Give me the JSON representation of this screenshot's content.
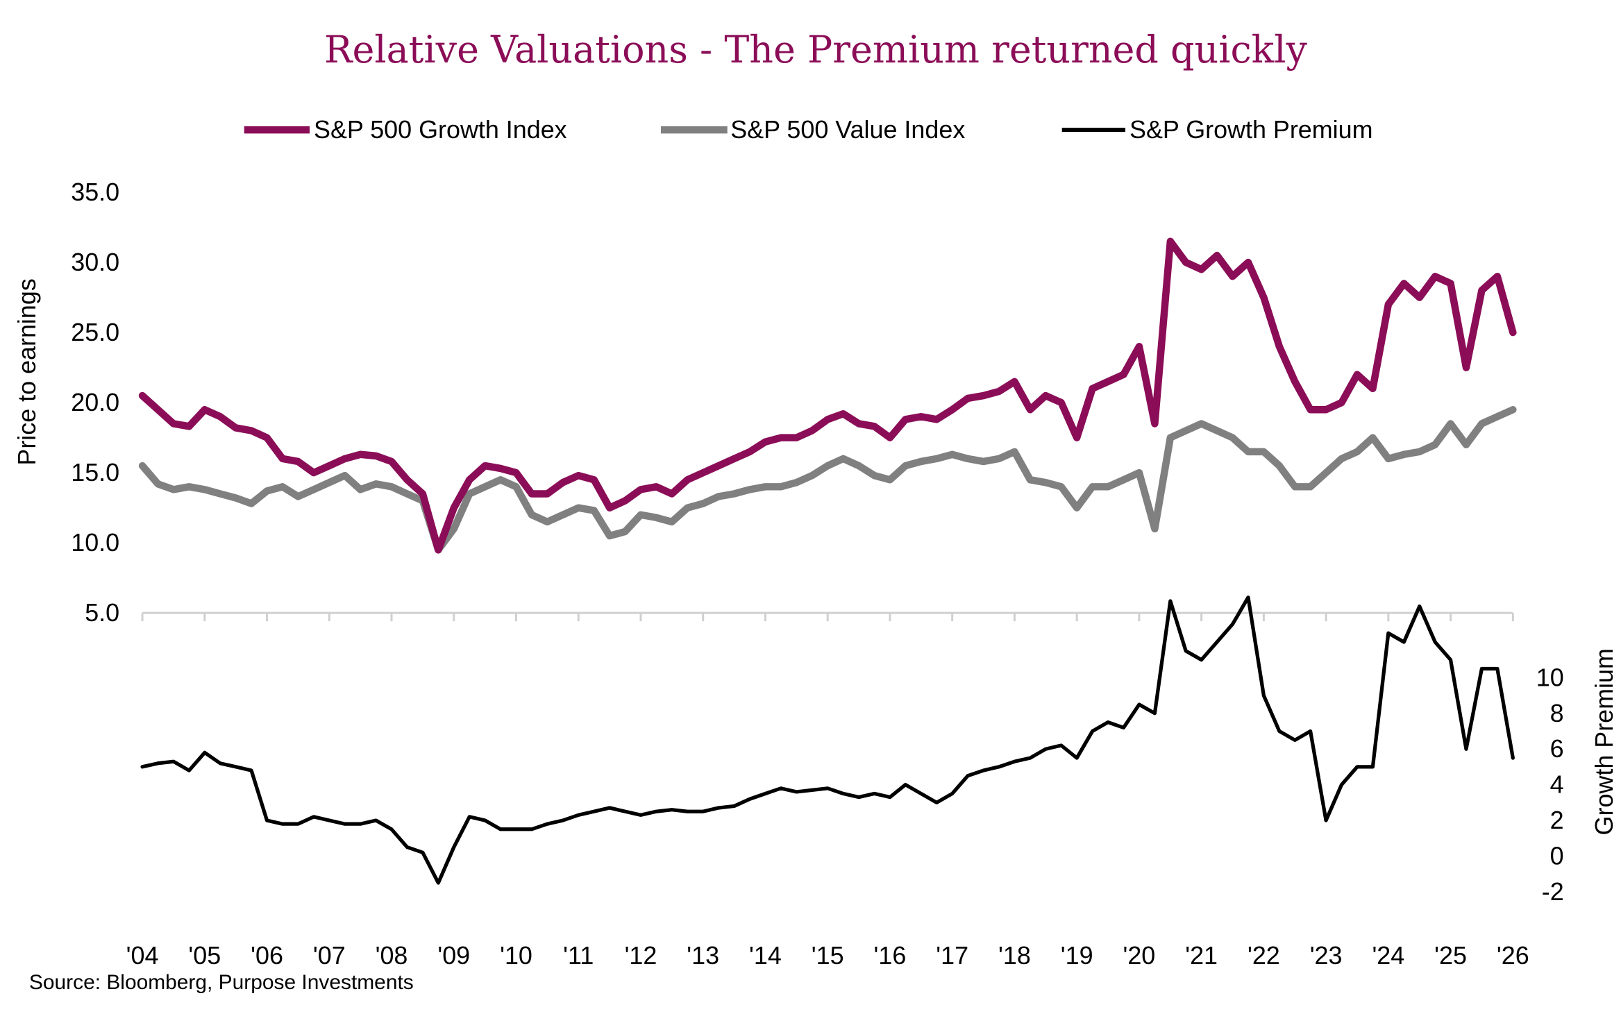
{
  "chart_data": {
    "type": "line",
    "title": "Relative Valuations - The Premium returned quickly",
    "source": "Source: Bloomberg, Purpose Investments",
    "ylabel": "Price to earnings",
    "y2label": "Growth Premium",
    "ylim": [
      5,
      35
    ],
    "yticks": [
      "35.0",
      "30.0",
      "25.0",
      "20.0",
      "15.0",
      "10.0",
      "5.0"
    ],
    "y2ticks": [
      "10",
      "8",
      "6",
      "4",
      "2",
      "0",
      "-2"
    ],
    "xticks": [
      "'04",
      "'05",
      "'06",
      "'07",
      "'08",
      "'09",
      "'10",
      "'11",
      "'12",
      "'13",
      "'14",
      "'15",
      "'16",
      "'17",
      "'18",
      "'19",
      "'20",
      "'21",
      "'22",
      "'23",
      "'24",
      "'25",
      "'26"
    ],
    "x_range": [
      2004,
      2026
    ],
    "grid": false,
    "legend_placement": "top",
    "colors": {
      "title": "#8B0D57",
      "growth": "#8B0D57",
      "value": "#808080",
      "premium": "#000000"
    },
    "x": [
      2004.0,
      2004.25,
      2004.5,
      2004.75,
      2005.0,
      2005.25,
      2005.5,
      2005.75,
      2006.0,
      2006.25,
      2006.5,
      2006.75,
      2007.0,
      2007.25,
      2007.5,
      2007.75,
      2008.0,
      2008.25,
      2008.5,
      2008.75,
      2009.0,
      2009.25,
      2009.5,
      2009.75,
      2010.0,
      2010.25,
      2010.5,
      2010.75,
      2011.0,
      2011.25,
      2011.5,
      2011.75,
      2012.0,
      2012.25,
      2012.5,
      2012.75,
      2013.0,
      2013.25,
      2013.5,
      2013.75,
      2014.0,
      2014.25,
      2014.5,
      2014.75,
      2015.0,
      2015.25,
      2015.5,
      2015.75,
      2016.0,
      2016.25,
      2016.5,
      2016.75,
      2017.0,
      2017.25,
      2017.5,
      2017.75,
      2018.0,
      2018.25,
      2018.5,
      2018.75,
      2019.0,
      2019.25,
      2019.5,
      2019.75,
      2020.0,
      2020.25,
      2020.5,
      2020.75,
      2021.0,
      2021.25,
      2021.5,
      2021.75,
      2022.0,
      2022.25,
      2022.5,
      2022.75,
      2023.0,
      2023.25,
      2023.5,
      2023.75,
      2024.0,
      2024.25,
      2024.5,
      2024.75,
      2025.0,
      2025.25,
      2025.5,
      2025.75,
      2026.0
    ],
    "series": [
      {
        "name": "S&P 500 Growth Index",
        "axis": "left",
        "values": [
          20.5,
          19.5,
          18.5,
          18.3,
          19.5,
          19.0,
          18.2,
          18.0,
          17.5,
          16.0,
          15.8,
          15.0,
          15.5,
          16.0,
          16.3,
          16.2,
          15.8,
          14.5,
          13.5,
          9.5,
          12.5,
          14.5,
          15.5,
          15.3,
          15.0,
          13.5,
          13.5,
          14.3,
          14.8,
          14.5,
          12.5,
          13.0,
          13.8,
          14.0,
          13.5,
          14.5,
          15.0,
          15.5,
          16.0,
          16.5,
          17.2,
          17.5,
          17.5,
          18.0,
          18.8,
          19.2,
          18.5,
          18.3,
          17.5,
          18.8,
          19.0,
          18.8,
          19.5,
          20.3,
          20.5,
          20.8,
          21.5,
          19.5,
          20.5,
          20.0,
          17.5,
          21.0,
          21.5,
          22.0,
          24.0,
          18.5,
          31.5,
          30.0,
          29.5,
          30.5,
          29.0,
          30.0,
          27.5,
          24.0,
          21.5,
          19.5,
          19.5,
          20.0,
          22.0,
          21.0,
          27.0,
          28.5,
          27.5,
          29.0,
          28.5,
          22.5,
          28.0,
          29.0,
          25.0
        ]
      },
      {
        "name": "S&P 500 Value Index",
        "axis": "left",
        "values": [
          15.5,
          14.2,
          13.8,
          14.0,
          13.8,
          13.5,
          13.2,
          12.8,
          13.7,
          14.0,
          13.3,
          13.8,
          14.3,
          14.8,
          13.8,
          14.2,
          14.0,
          13.5,
          13.0,
          9.5,
          11.0,
          13.5,
          14.0,
          14.5,
          14.0,
          12.0,
          11.5,
          12.0,
          12.5,
          12.3,
          10.5,
          10.8,
          12.0,
          11.8,
          11.5,
          12.5,
          12.8,
          13.3,
          13.5,
          13.8,
          14.0,
          14.0,
          14.3,
          14.8,
          15.5,
          16.0,
          15.5,
          14.8,
          14.5,
          15.5,
          15.8,
          16.0,
          16.3,
          16.0,
          15.8,
          16.0,
          16.5,
          14.5,
          14.3,
          14.0,
          12.5,
          14.0,
          14.0,
          14.5,
          15.0,
          11.0,
          17.5,
          18.0,
          18.5,
          18.0,
          17.5,
          16.5,
          16.5,
          15.5,
          14.0,
          14.0,
          15.0,
          16.0,
          16.5,
          17.5,
          16.0,
          16.3,
          16.5,
          17.0,
          18.5,
          17.0,
          18.5,
          19.0,
          19.5
        ]
      },
      {
        "name": "S&P Growth Premium",
        "axis": "right",
        "values": [
          5.0,
          5.2,
          5.3,
          4.8,
          5.8,
          5.2,
          5.0,
          4.8,
          2.0,
          1.8,
          1.8,
          2.2,
          2.0,
          1.8,
          1.8,
          2.0,
          1.5,
          0.5,
          0.2,
          -1.5,
          0.5,
          2.2,
          2.0,
          1.5,
          1.5,
          1.5,
          1.8,
          2.0,
          2.3,
          2.5,
          2.7,
          2.5,
          2.3,
          2.5,
          2.6,
          2.5,
          2.5,
          2.7,
          2.8,
          3.2,
          3.5,
          3.8,
          3.6,
          3.7,
          3.8,
          3.5,
          3.3,
          3.5,
          3.3,
          4.0,
          3.5,
          3.0,
          3.5,
          4.5,
          4.8,
          5.0,
          5.3,
          5.5,
          6.0,
          6.2,
          5.5,
          7.0,
          7.5,
          7.2,
          8.5,
          8.0,
          14.3,
          11.5,
          11.0,
          12.0,
          13.0,
          14.5,
          9.0,
          7.0,
          6.5,
          7.0,
          2.0,
          4.0,
          5.0,
          5.0,
          12.5,
          12.0,
          14.0,
          12.0,
          11.0,
          6.0,
          10.5,
          10.5,
          5.5
        ]
      }
    ]
  }
}
